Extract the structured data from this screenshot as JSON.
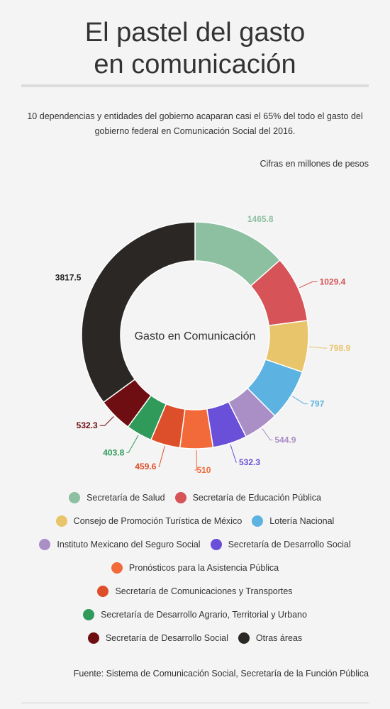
{
  "title": {
    "line1": "El pastel del gasto",
    "line2": "en comunicación"
  },
  "subtitle": "10 dependencias y entidades del gobierno acaparan casi el 65% del todo el gasto del gobierno federal en Comunicación Social del 2016.",
  "units_note": "Cifras en millones de pesos",
  "source": "Fuente: Sistema de Comunicación Social, Secretaría de la Función Pública",
  "chart_data": {
    "type": "pie",
    "variant": "donut",
    "center_label": "Gasto en Comunicación",
    "slices": [
      {
        "label": "Secretaría de Salud",
        "value": 1465.8,
        "display": "1465.8",
        "color": "#8cc0a0"
      },
      {
        "label": "Secretaría de Educación Pública",
        "value": 1029.4,
        "display": "1029.4",
        "color": "#d65358"
      },
      {
        "label": "Consejo de Promoción Turística de México",
        "value": 798.9,
        "display": "798.9",
        "color": "#e8c56a"
      },
      {
        "label": "Lotería Nacional",
        "value": 797,
        "display": "797",
        "color": "#5cb2e0"
      },
      {
        "label": "Instituto Mexicano del Seguro Social",
        "value": 544.9,
        "display": "544.9",
        "color": "#a98fc6"
      },
      {
        "label": "Secretaría de Desarrollo Social",
        "value": 532.3,
        "display": "532.3",
        "color": "#6a4fd8"
      },
      {
        "label": "Pronósticos para la Asistencia Pública",
        "value": 510,
        "display": "510",
        "color": "#f26a3a"
      },
      {
        "label": "Secretaría de Comunicaciones y Transportes",
        "value": 459.6,
        "display": "459.6",
        "color": "#dd4f2a"
      },
      {
        "label": "Secretaría de Desarrollo Agrario, Territorial y Urbano",
        "value": 403.8,
        "display": "403.8",
        "color": "#2f9a5a"
      },
      {
        "label": "Secretaría de Desarrollo Social",
        "value": 532.3,
        "display": "532.3",
        "color": "#6e0e12"
      },
      {
        "label": "Otras áreas",
        "value": 3817.5,
        "display": "3817.5",
        "color": "#2a2725",
        "label_color": "#222222"
      }
    ],
    "legend_rows": [
      [
        0,
        1
      ],
      [
        2,
        3
      ],
      [
        4,
        5
      ],
      [
        6
      ],
      [
        7
      ],
      [
        8
      ],
      [
        9,
        10
      ]
    ]
  }
}
